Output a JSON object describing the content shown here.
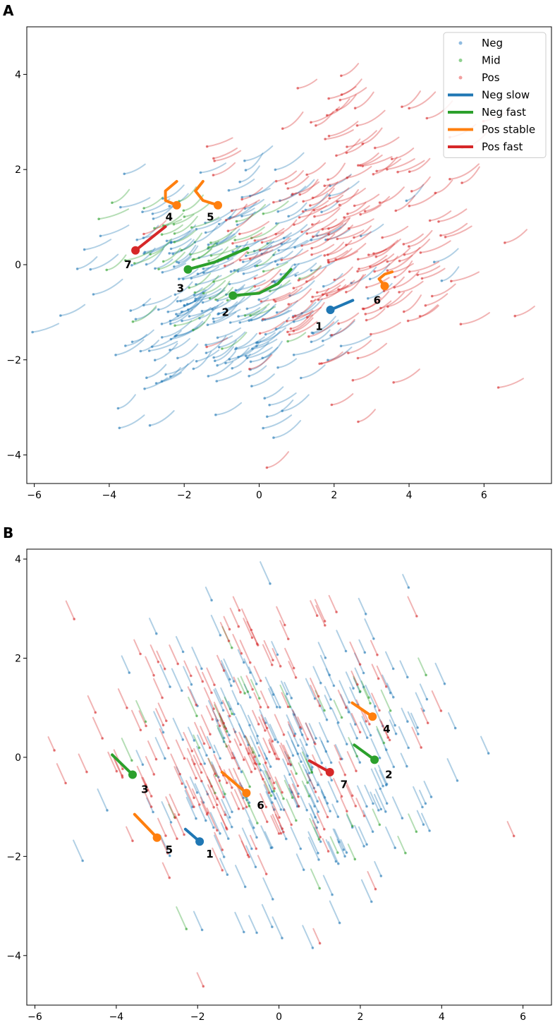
{
  "chart_data": [
    {
      "panel": "A",
      "type": "scatter",
      "xlim": [
        -6.2,
        7.8
      ],
      "ylim": [
        -4.6,
        5.0
      ],
      "xticks": [
        -6,
        -4,
        -2,
        0,
        2,
        4,
        6
      ],
      "yticks": [
        -4,
        -2,
        0,
        2,
        4
      ],
      "xtick_labels": [
        "−6",
        "−4",
        "−2",
        "0",
        "2",
        "4",
        "6"
      ],
      "ytick_labels": [
        "−4",
        "−2",
        "0",
        "2",
        "4"
      ],
      "legend": {
        "position": "top-right",
        "entries": [
          {
            "label": "Neg",
            "kind": "point",
            "color": "#8fbbe0"
          },
          {
            "label": "Mid",
            "kind": "point",
            "color": "#8fd08f"
          },
          {
            "label": "Pos",
            "kind": "point",
            "color": "#f2a0a0"
          },
          {
            "label": "Neg slow",
            "kind": "line",
            "color": "#1f77b4"
          },
          {
            "label": "Neg fast",
            "kind": "line",
            "color": "#2ca02c"
          },
          {
            "label": "Pos stable",
            "kind": "line",
            "color": "#ff7f0e"
          },
          {
            "label": "Pos fast",
            "kind": "line",
            "color": "#d62728"
          }
        ]
      },
      "background_style": "curved",
      "groups": [
        {
          "name": "Neg",
          "color": "#1f77b4",
          "cx": -1.0,
          "cy": -0.8,
          "sx": 1.7,
          "sy": 1.2,
          "n": 230,
          "seed": 11
        },
        {
          "name": "Mid",
          "color": "#2ca02c",
          "cx": -1.5,
          "cy": 0.0,
          "sx": 1.3,
          "sy": 0.9,
          "n": 50,
          "seed": 23
        },
        {
          "name": "Pos",
          "color": "#d62728",
          "cx": 1.9,
          "cy": 0.7,
          "sx": 1.7,
          "sy": 1.5,
          "n": 200,
          "seed": 37
        }
      ],
      "highlights": [
        {
          "id": "1",
          "category": "Neg slow",
          "color": "#1f77b4",
          "points": [
            [
              1.9,
              -0.95
            ],
            [
              2.2,
              -0.85
            ],
            [
              2.5,
              -0.75
            ]
          ],
          "label_offset": [
            -0.3,
            -0.35
          ]
        },
        {
          "id": "2",
          "category": "Neg fast",
          "color": "#2ca02c",
          "points": [
            [
              -0.7,
              -0.65
            ],
            [
              0.0,
              -0.6
            ],
            [
              0.5,
              -0.4
            ],
            [
              0.85,
              -0.1
            ]
          ],
          "label_offset": [
            -0.2,
            -0.35
          ]
        },
        {
          "id": "3",
          "category": "Neg fast",
          "color": "#2ca02c",
          "points": [
            [
              -1.9,
              -0.1
            ],
            [
              -1.2,
              0.05
            ],
            [
              -0.6,
              0.25
            ],
            [
              -0.3,
              0.35
            ]
          ],
          "label_offset": [
            -0.2,
            -0.4
          ]
        },
        {
          "id": "4",
          "category": "Pos stable",
          "color": "#ff7f0e",
          "points": [
            [
              -2.2,
              1.25
            ],
            [
              -2.5,
              1.35
            ],
            [
              -2.5,
              1.55
            ],
            [
              -2.2,
              1.75
            ]
          ],
          "label_offset": [
            -0.2,
            -0.25
          ]
        },
        {
          "id": "5",
          "category": "Pos stable",
          "color": "#ff7f0e",
          "points": [
            [
              -1.1,
              1.25
            ],
            [
              -1.5,
              1.35
            ],
            [
              -1.7,
              1.55
            ],
            [
              -1.5,
              1.75
            ]
          ],
          "label_offset": [
            -0.2,
            -0.25
          ]
        },
        {
          "id": "6",
          "category": "Pos stable",
          "color": "#ff7f0e",
          "points": [
            [
              3.35,
              -0.45
            ],
            [
              3.2,
              -0.3
            ],
            [
              3.35,
              -0.2
            ],
            [
              3.55,
              -0.15
            ]
          ],
          "label_offset": [
            -0.2,
            -0.3
          ]
        },
        {
          "id": "7",
          "category": "Pos fast",
          "color": "#d62728",
          "points": [
            [
              -3.3,
              0.3
            ],
            [
              -2.9,
              0.55
            ],
            [
              -2.5,
              0.8
            ]
          ],
          "label_offset": [
            -0.2,
            -0.3
          ]
        }
      ]
    },
    {
      "panel": "B",
      "type": "scatter",
      "xlim": [
        -6.2,
        6.7
      ],
      "ylim": [
        -5.0,
        4.2
      ],
      "xticks": [
        -6,
        -4,
        -2,
        0,
        2,
        4,
        6
      ],
      "yticks": [
        -4,
        -2,
        0,
        2,
        4
      ],
      "xtick_labels": [
        "−6",
        "−4",
        "−2",
        "0",
        "2",
        "4",
        "6"
      ],
      "ytick_labels": [
        "−4",
        "−2",
        "0",
        "2",
        "4"
      ],
      "background_style": "straight",
      "groups": [
        {
          "name": "Neg",
          "color": "#1f77b4",
          "cx": 0.3,
          "cy": -0.3,
          "sx": 1.9,
          "sy": 1.3,
          "n": 230,
          "seed": 51
        },
        {
          "name": "Mid",
          "color": "#2ca02c",
          "cx": 0.0,
          "cy": -0.3,
          "sx": 1.5,
          "sy": 1.0,
          "n": 50,
          "seed": 63
        },
        {
          "name": "Pos",
          "color": "#d62728",
          "cx": -0.6,
          "cy": 0.1,
          "sx": 1.8,
          "sy": 1.4,
          "n": 200,
          "seed": 77
        }
      ],
      "highlights": [
        {
          "id": "1",
          "category": "Neg slow",
          "color": "#1f77b4",
          "points": [
            [
              -1.95,
              -1.7
            ],
            [
              -2.3,
              -1.45
            ]
          ],
          "label_offset": [
            0.25,
            -0.25
          ]
        },
        {
          "id": "2",
          "category": "Neg fast",
          "color": "#2ca02c",
          "points": [
            [
              2.35,
              -0.05
            ],
            [
              1.85,
              0.25
            ]
          ],
          "label_offset": [
            0.35,
            -0.3
          ]
        },
        {
          "id": "3",
          "category": "Neg fast",
          "color": "#2ca02c",
          "points": [
            [
              -3.6,
              -0.35
            ],
            [
              -4.1,
              0.05
            ]
          ],
          "label_offset": [
            0.3,
            -0.3
          ]
        },
        {
          "id": "4",
          "category": "Pos stable",
          "color": "#ff7f0e",
          "points": [
            [
              2.3,
              0.82
            ],
            [
              1.8,
              1.1
            ]
          ],
          "label_offset": [
            0.35,
            -0.25
          ]
        },
        {
          "id": "5",
          "category": "Pos stable",
          "color": "#ff7f0e",
          "points": [
            [
              -3.0,
              -1.62
            ],
            [
              -3.55,
              -1.15
            ]
          ],
          "label_offset": [
            0.3,
            -0.25
          ]
        },
        {
          "id": "6",
          "category": "Pos stable",
          "color": "#ff7f0e",
          "points": [
            [
              -0.8,
              -0.72
            ],
            [
              -1.4,
              -0.3
            ]
          ],
          "label_offset": [
            0.35,
            -0.25
          ]
        },
        {
          "id": "7",
          "category": "Pos fast",
          "color": "#d62728",
          "points": [
            [
              1.25,
              -0.3
            ],
            [
              0.75,
              -0.07
            ]
          ],
          "label_offset": [
            0.35,
            -0.25
          ]
        }
      ]
    }
  ]
}
